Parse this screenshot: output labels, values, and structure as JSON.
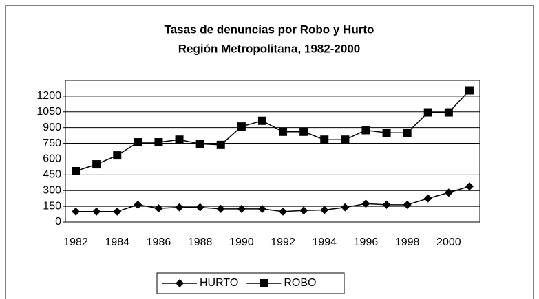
{
  "chart_data": {
    "type": "line",
    "title": "Tasas de denuncias por Robo y Hurto",
    "subtitle": "Región Metropolitana, 1982-2000",
    "categories": [
      "1982",
      null,
      "1984",
      null,
      "1986",
      null,
      "1988",
      null,
      "1990",
      null,
      "1992",
      null,
      "1994",
      null,
      "1996",
      null,
      "1998",
      null,
      "2000",
      null
    ],
    "series": [
      {
        "name": "HURTO",
        "color": "#000000",
        "marker": "diamond",
        "values": [
          100,
          100,
          100,
          165,
          130,
          140,
          140,
          125,
          125,
          125,
          100,
          110,
          115,
          140,
          175,
          165,
          165,
          225,
          280,
          340
        ]
      },
      {
        "name": "ROBO",
        "color": "#000000",
        "marker": "square",
        "values": [
          485,
          550,
          635,
          760,
          760,
          785,
          745,
          735,
          910,
          965,
          860,
          860,
          785,
          785,
          875,
          850,
          850,
          1045,
          1045,
          1255
        ]
      }
    ],
    "ylim": [
      0,
      1350
    ],
    "yticks": [
      0,
      150,
      300,
      450,
      600,
      750,
      900,
      1050,
      1200
    ],
    "grid": true,
    "legend": "bottom"
  }
}
